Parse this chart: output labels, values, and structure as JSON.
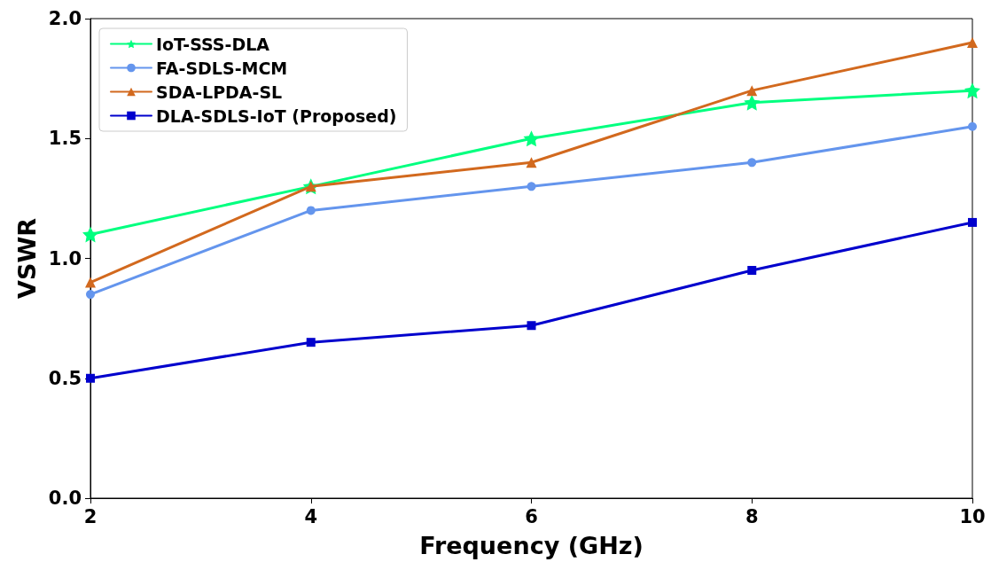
{
  "chart_data": {
    "type": "line",
    "xlabel": "Frequency (GHz)",
    "ylabel": "VSWR",
    "x": [
      2,
      4,
      6,
      8,
      10
    ],
    "series": [
      {
        "name": "IoT-SSS-DLA",
        "color": "#00ff7f",
        "marker": "star",
        "values": [
          1.1,
          1.3,
          1.5,
          1.65,
          1.7
        ]
      },
      {
        "name": "FA-SDLS-MCM",
        "color": "#6495ed",
        "marker": "circle",
        "values": [
          0.85,
          1.2,
          1.3,
          1.4,
          1.55
        ]
      },
      {
        "name": "SDA-LPDA-SL",
        "color": "#d2691e",
        "marker": "triangle",
        "values": [
          0.9,
          1.3,
          1.4,
          1.7,
          1.9
        ]
      },
      {
        "name": "DLA-SDLS-IoT (Proposed)",
        "color": "#0000cd",
        "marker": "square",
        "values": [
          0.5,
          0.65,
          0.72,
          0.95,
          1.15
        ]
      }
    ],
    "xlim": [
      2,
      10
    ],
    "xticks": [
      2,
      4,
      6,
      8,
      10
    ],
    "ylim": [
      0,
      2
    ],
    "yticks": [
      {
        "value": 0,
        "label": "0.0"
      },
      {
        "value": 0.5,
        "label": "0.5"
      },
      {
        "value": 1,
        "label": "1.0"
      },
      {
        "value": 1.5,
        "label": "1.5"
      },
      {
        "value": 2,
        "label": "2.0"
      }
    ],
    "grid": false,
    "legend": "top left",
    "line_style": "solid"
  }
}
